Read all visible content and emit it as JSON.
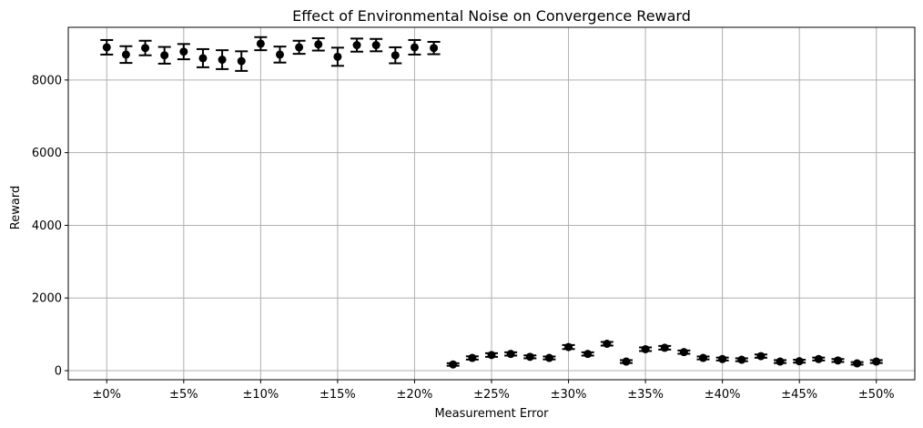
{
  "chart_data": {
    "type": "scatter",
    "title": "Effect of Environmental Noise on Convergence Reward",
    "xlabel": "Measurement Error",
    "ylabel": "Reward",
    "xlim": [
      -2.5,
      52.5
    ],
    "ylim": [
      -250,
      9450
    ],
    "grid": true,
    "x_ticks": [
      0,
      5,
      10,
      15,
      20,
      25,
      30,
      35,
      40,
      45,
      50
    ],
    "x_tick_labels": [
      "±0%",
      "±5%",
      "±10%",
      "±15%",
      "±20%",
      "±25%",
      "±30%",
      "±35%",
      "±40%",
      "±45%",
      "±50%"
    ],
    "y_ticks": [
      0,
      2000,
      4000,
      6000,
      8000
    ],
    "y_tick_labels": [
      "0",
      "2000",
      "4000",
      "6000",
      "8000"
    ],
    "series": [
      {
        "error_bars": true,
        "x": [
          0,
          1.25,
          2.5,
          3.75,
          5,
          6.25,
          7.5,
          8.75,
          10,
          11.25,
          12.5,
          13.75,
          15,
          16.25,
          17.5,
          18.75,
          20,
          21.25,
          22.5,
          23.75,
          25,
          26.25,
          27.5,
          28.75,
          30,
          31.25,
          32.5,
          33.75,
          35,
          36.25,
          37.5,
          38.75,
          40,
          41.25,
          42.5,
          43.75,
          45,
          46.25,
          47.5,
          48.75,
          50
        ],
        "y": [
          8900,
          8700,
          8880,
          8680,
          8780,
          8600,
          8560,
          8520,
          9000,
          8700,
          8900,
          8980,
          8640,
          8960,
          8960,
          8680,
          8900,
          8880,
          170,
          350,
          430,
          460,
          380,
          350,
          650,
          460,
          740,
          250,
          590,
          630,
          510,
          350,
          320,
          300,
          400,
          250,
          260,
          320,
          280,
          200,
          250
        ],
        "yerr": [
          200,
          230,
          200,
          230,
          210,
          250,
          260,
          270,
          180,
          220,
          180,
          170,
          250,
          180,
          170,
          220,
          200,
          170,
          35,
          45,
          50,
          45,
          40,
          40,
          55,
          45,
          50,
          40,
          50,
          50,
          45,
          40,
          40,
          40,
          45,
          40,
          40,
          40,
          40,
          35,
          40
        ]
      }
    ]
  }
}
